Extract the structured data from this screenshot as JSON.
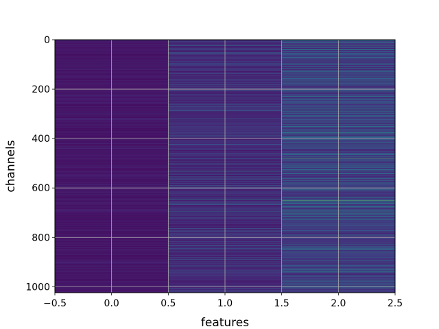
{
  "chart_data": {
    "type": "heatmap",
    "title": "",
    "xlabel": "features",
    "ylabel": "channels",
    "xlim": [
      -0.5,
      2.5
    ],
    "ylim": [
      1024,
      0
    ],
    "y_axis_inverted": true,
    "grid": true,
    "colormap": "viridis",
    "n_channels": 1024,
    "n_features": 3,
    "x_ticks": [
      -0.5,
      0.0,
      0.5,
      1.0,
      1.5,
      2.0,
      2.5
    ],
    "x_tick_labels": [
      "−0.5",
      "0.0",
      "0.5",
      "1.0",
      "1.5",
      "2.0",
      "2.5"
    ],
    "y_ticks": [
      0,
      200,
      400,
      600,
      800,
      1000
    ],
    "y_tick_labels": [
      "0",
      "200",
      "400",
      "600",
      "800",
      "1000"
    ],
    "columns": [
      {
        "feature": 0,
        "base_level": 0.06,
        "jitter": 0.05,
        "highlights": [
          {
            "channel": 150,
            "level": 0.22
          },
          {
            "channel": 990,
            "level": 0.2
          }
        ]
      },
      {
        "feature": 1,
        "base_level": 0.1,
        "jitter": 0.14,
        "highlights": [
          {
            "channel": 22,
            "level": 0.62
          },
          {
            "channel": 38,
            "level": 0.5
          },
          {
            "channel": 55,
            "level": 0.4
          },
          {
            "channel": 90,
            "level": 0.42
          },
          {
            "channel": 160,
            "level": 0.45
          },
          {
            "channel": 205,
            "level": 0.55
          },
          {
            "channel": 250,
            "level": 0.42
          },
          {
            "channel": 365,
            "level": 0.45
          },
          {
            "channel": 460,
            "level": 0.48
          },
          {
            "channel": 530,
            "level": 0.6
          },
          {
            "channel": 648,
            "level": 0.65
          },
          {
            "channel": 660,
            "level": 0.5
          },
          {
            "channel": 695,
            "level": 0.6
          },
          {
            "channel": 855,
            "level": 0.42
          },
          {
            "channel": 935,
            "level": 0.55
          }
        ]
      },
      {
        "feature": 2,
        "base_level": 0.14,
        "jitter": 0.22,
        "highlights": [
          {
            "channel": 22,
            "level": 0.7
          },
          {
            "channel": 40,
            "level": 0.62
          },
          {
            "channel": 125,
            "level": 0.5
          },
          {
            "channel": 175,
            "level": 0.52
          },
          {
            "channel": 205,
            "level": 0.45
          },
          {
            "channel": 290,
            "level": 0.5
          },
          {
            "channel": 350,
            "level": 0.48
          },
          {
            "channel": 425,
            "level": 0.55
          },
          {
            "channel": 480,
            "level": 0.78
          },
          {
            "channel": 530,
            "level": 0.55
          },
          {
            "channel": 650,
            "level": 0.85
          },
          {
            "channel": 665,
            "level": 0.6
          },
          {
            "channel": 700,
            "level": 0.7
          },
          {
            "channel": 770,
            "level": 0.5
          },
          {
            "channel": 855,
            "level": 0.45
          },
          {
            "channel": 935,
            "level": 0.6
          },
          {
            "channel": 998,
            "level": 0.5
          }
        ]
      }
    ]
  }
}
